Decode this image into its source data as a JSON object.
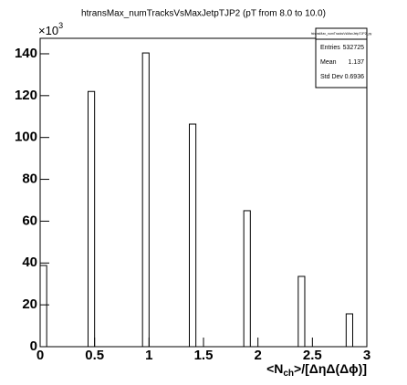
{
  "chart_data": {
    "type": "histogram",
    "title": "htransMax_numTracksVsMaxJetpTJP2 (pT from 8.0 to 10.0)",
    "x_label": {
      "pre": "<N",
      "sub": "ch",
      "post": ">/[ΔηΔ(Δϕ)]"
    },
    "y_exponent": {
      "base": "×10",
      "exp": "3"
    },
    "bins": [
      0,
      0.06,
      0.44,
      0.5,
      0.94,
      1.0,
      1.37,
      1.43,
      1.87,
      1.93,
      2.37,
      2.43,
      2.81,
      2.87,
      3
    ],
    "values": [
      38.8,
      0,
      122,
      0,
      140.4,
      0,
      106.4,
      0,
      65,
      0,
      33.6,
      0,
      15.7,
      0
    ],
    "color": "#000000",
    "xlim": [
      0,
      3
    ],
    "xticks": [
      0,
      0.5,
      1,
      1.5,
      2,
      2.5,
      3
    ],
    "ylim": [
      0,
      147.4
    ],
    "yticks": [
      0,
      20,
      40,
      60,
      80,
      100,
      120,
      140
    ],
    "stats": {
      "name": "htransMax_numTracksVsMaxJetpTJP2_py",
      "rows": [
        [
          "Entries",
          "532725"
        ],
        [
          "Mean",
          "1.137"
        ],
        [
          "Std Dev",
          "0.6936"
        ]
      ]
    }
  }
}
